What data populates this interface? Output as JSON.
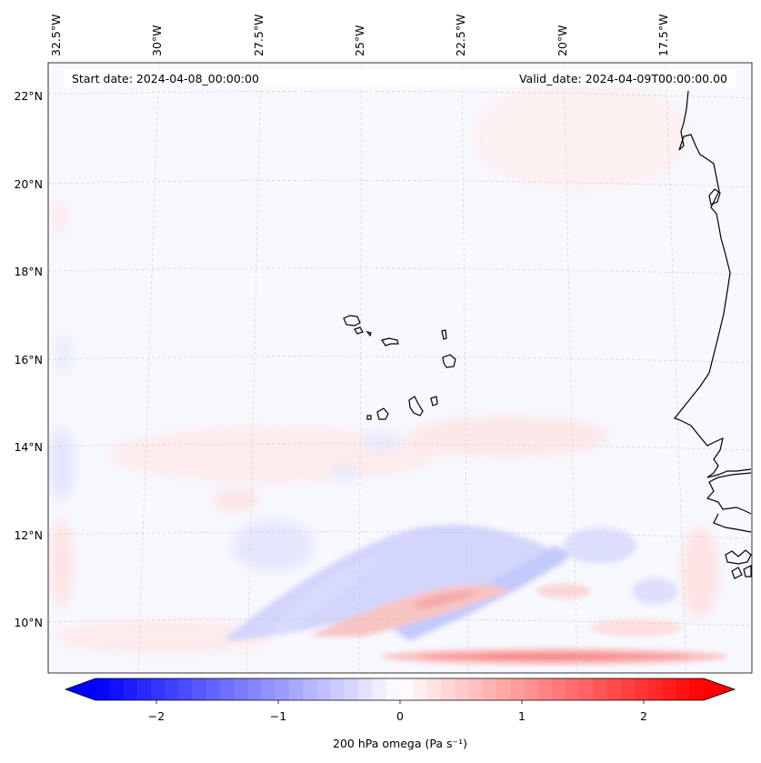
{
  "map": {
    "start_label": "Start date: 2024-04-08_00:00:00",
    "valid_label": "Valid_date: 2024-04-09T00:00:00.00",
    "lon_labels": [
      "32.5°W",
      "30°W",
      "27.5°W",
      "25°W",
      "22.5°W",
      "20°W",
      "17.5°W"
    ],
    "lat_labels": [
      "22°N",
      "20°N",
      "18°N",
      "16°N",
      "14°N",
      "12°N",
      "10°N"
    ],
    "field_colors": {
      "background": "#f8f8ff",
      "weak_positive": "#fde9e9",
      "moderate_positive": "#fbbcbc",
      "strong_positive": "#f78a8a",
      "weak_negative": "#e2e4fd",
      "moderate_negative": "#c6cafb",
      "coastline": "#000000",
      "gridline": "#c8c8c8"
    }
  },
  "colorbar": {
    "label": "200 hPa omega (Pa s⁻¹)",
    "tick_labels": [
      "−2",
      "−1",
      "0",
      "1",
      "2"
    ],
    "min": -2.75,
    "max": 2.75,
    "levels": 44,
    "low_color": "#0000ff",
    "mid_color": "#ffffff",
    "high_color": "#ff0000"
  }
}
